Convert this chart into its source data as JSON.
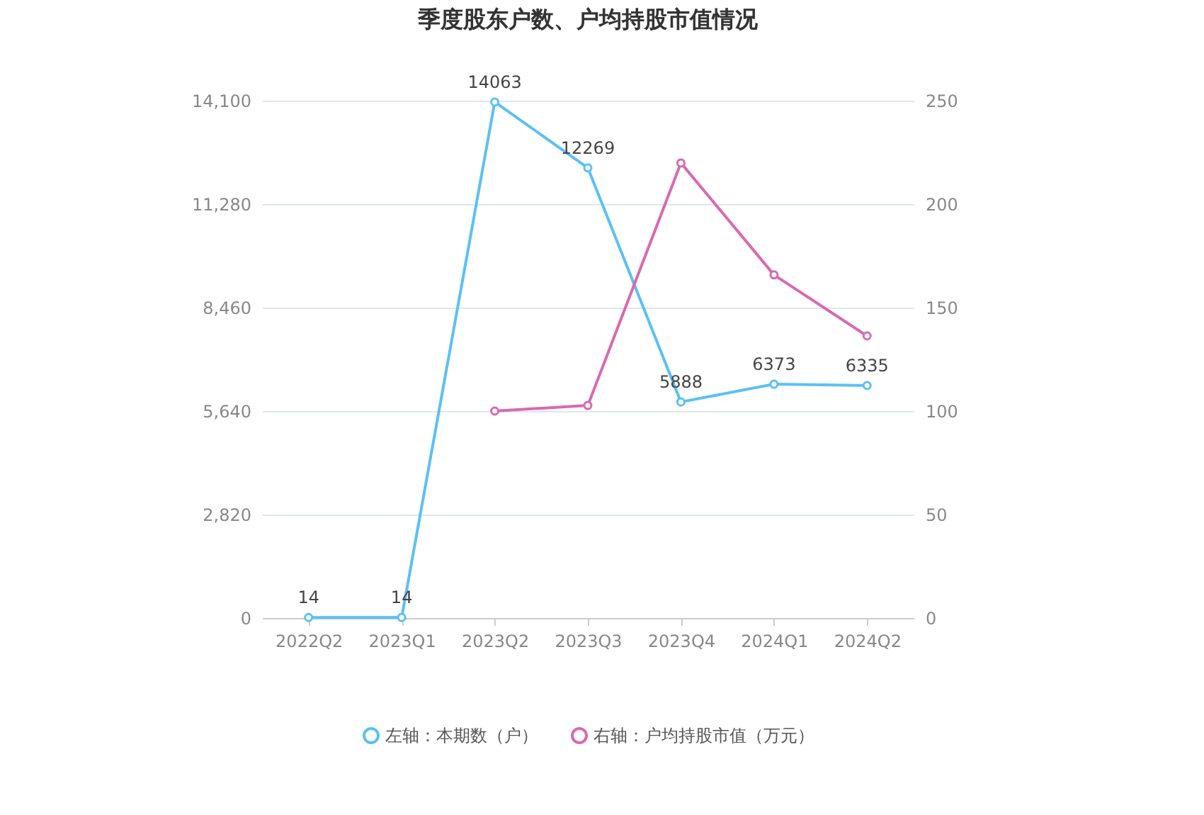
{
  "chart_data": {
    "type": "line",
    "title": "季度股东户数、户均持股市值情况",
    "categories": [
      "2022Q2",
      "2023Q1",
      "2023Q2",
      "2023Q3",
      "2023Q4",
      "2024Q1",
      "2024Q2"
    ],
    "series": [
      {
        "name": "左轴：本期数（户）",
        "color": "#5bc0f5",
        "values": [
          14,
          14,
          14063,
          12269,
          5888,
          6373,
          6335
        ],
        "value_labels": [
          "14",
          "14",
          "14063",
          "12269",
          "5888",
          "6373",
          "6335"
        ]
      },
      {
        "name": "右轴：户均持股市值（万元）",
        "color": "#d86aae",
        "axis": "y2",
        "values": [
          null,
          null,
          100,
          102.7,
          219.9,
          165.8,
          136.3
        ]
      }
    ],
    "ylim": [
      0,
      14100
    ],
    "yticks": [
      0,
      {
        "value": 2820,
        "label": "2,820"
      },
      {
        "value": 5640,
        "label": "5,640"
      },
      {
        "value": 8460,
        "label": "8,460"
      },
      {
        "value": 11280,
        "label": "11,280"
      },
      {
        "value": 14100,
        "label": "14,100"
      }
    ],
    "y2lim": [
      0,
      250
    ],
    "y2ticks": [
      0,
      50,
      100,
      150,
      200,
      250
    ],
    "grid": "y",
    "legend": "bottom",
    "marker": "circle",
    "line_style": "solid"
  }
}
